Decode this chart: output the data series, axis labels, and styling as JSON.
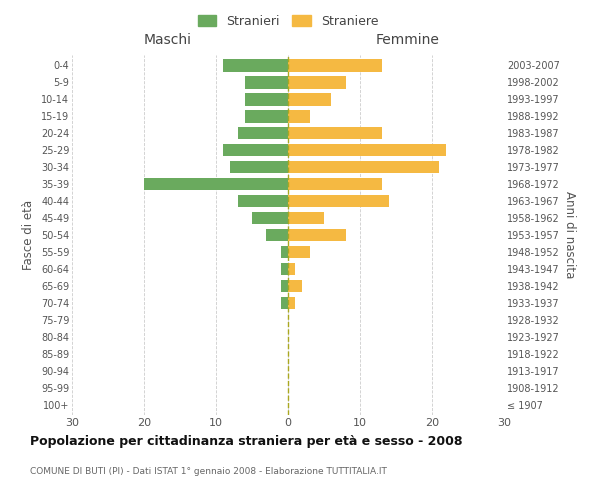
{
  "age_groups": [
    "100+",
    "95-99",
    "90-94",
    "85-89",
    "80-84",
    "75-79",
    "70-74",
    "65-69",
    "60-64",
    "55-59",
    "50-54",
    "45-49",
    "40-44",
    "35-39",
    "30-34",
    "25-29",
    "20-24",
    "15-19",
    "10-14",
    "5-9",
    "0-4"
  ],
  "birth_years": [
    "≤ 1907",
    "1908-1912",
    "1913-1917",
    "1918-1922",
    "1923-1927",
    "1928-1932",
    "1933-1937",
    "1938-1942",
    "1943-1947",
    "1948-1952",
    "1953-1957",
    "1958-1962",
    "1963-1967",
    "1968-1972",
    "1973-1977",
    "1978-1982",
    "1983-1987",
    "1988-1992",
    "1993-1997",
    "1998-2002",
    "2003-2007"
  ],
  "maschi": [
    0,
    0,
    0,
    0,
    0,
    0,
    1,
    1,
    1,
    1,
    3,
    5,
    7,
    20,
    8,
    9,
    7,
    6,
    6,
    6,
    9
  ],
  "femmine": [
    0,
    0,
    0,
    0,
    0,
    0,
    1,
    2,
    1,
    3,
    8,
    5,
    14,
    13,
    21,
    22,
    13,
    3,
    6,
    8,
    13
  ],
  "maschi_color": "#6aaa5e",
  "femmine_color": "#f5b942",
  "background_color": "#ffffff",
  "grid_color": "#cccccc",
  "title": "Popolazione per cittadinanza straniera per età e sesso - 2008",
  "subtitle": "COMUNE DI BUTI (PI) - Dati ISTAT 1° gennaio 2008 - Elaborazione TUTTITALIA.IT",
  "ylabel_left": "Fasce di età",
  "ylabel_right": "Anni di nascita",
  "header_left": "Maschi",
  "header_right": "Femmine",
  "legend_maschi": "Stranieri",
  "legend_femmine": "Straniere",
  "xlim": 30,
  "bar_height": 0.75
}
